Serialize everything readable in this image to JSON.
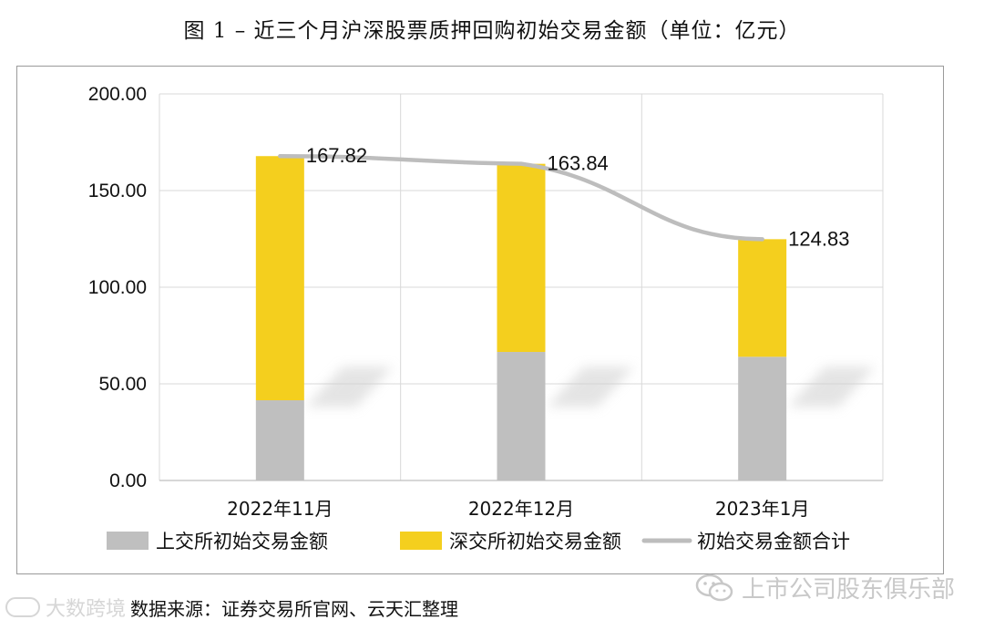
{
  "figure": {
    "title": "图 1 –  近三个月沪深股票质押回购初始交易金额（单位：亿元）",
    "source": "数据来源：证券交易所官网、云天汇整理"
  },
  "watermarks": {
    "left_text": "大数跨境",
    "right_text": "上市公司股东俱乐部"
  },
  "colors": {
    "sse": "#bfbfbf",
    "szse": "#f4cf1e",
    "total_line": "#bdbdbd",
    "grid": "#d9d9d9"
  },
  "chart_data": {
    "type": "bar",
    "stacked": true,
    "categories": [
      "2022年11月",
      "2022年12月",
      "2023年1月"
    ],
    "series": [
      {
        "name": "上交所初始交易金额",
        "type": "bar",
        "values": [
          41.5,
          66.5,
          64.0
        ]
      },
      {
        "name": "深交所初始交易金额",
        "type": "bar",
        "values": [
          126.32,
          97.34,
          60.83
        ]
      },
      {
        "name": "初始交易金额合计",
        "type": "line",
        "values": [
          167.82,
          163.84,
          124.83
        ]
      }
    ],
    "data_labels": [
      "167.82",
      "163.84",
      "124.83"
    ],
    "y_ticks": [
      "0.00",
      "50.00",
      "100.00",
      "150.00",
      "200.00"
    ],
    "ylim": [
      0,
      200
    ],
    "grid": true,
    "legend_position": "bottom"
  }
}
